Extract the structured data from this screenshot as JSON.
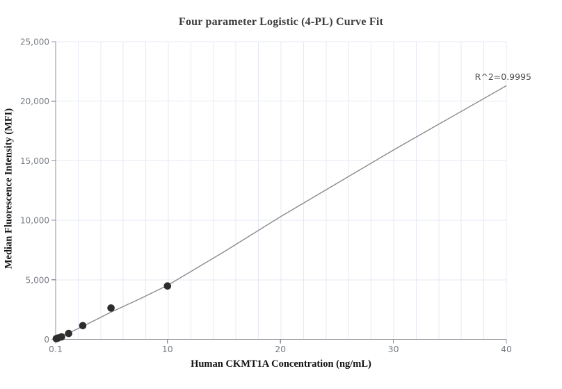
{
  "chart_data": {
    "type": "scatter",
    "title": "Four parameter Logistic (4-PL) Curve Fit",
    "xlabel": "Human CKMT1A Concentration (ng/mL)",
    "ylabel": "Median Fluorescence Intensity (MFI)",
    "annotation": "R^2=0.9995",
    "xlim": [
      0.1,
      40
    ],
    "ylim": [
      0,
      25000
    ],
    "grid": true,
    "legend_position": "none",
    "x_grid_divisions": 20,
    "x_ticks": [
      {
        "value": 0.1,
        "label": "0.1"
      },
      {
        "value": 10,
        "label": "10"
      },
      {
        "value": 20,
        "label": "20"
      },
      {
        "value": 30,
        "label": "30"
      },
      {
        "value": 40,
        "label": "40"
      }
    ],
    "y_ticks": [
      {
        "value": 0,
        "label": "0"
      },
      {
        "value": 5000,
        "label": "5,000"
      },
      {
        "value": 10000,
        "label": "10,000"
      },
      {
        "value": 15000,
        "label": "15,000"
      },
      {
        "value": 20000,
        "label": "20,000"
      },
      {
        "value": 25000,
        "label": "25,000"
      }
    ],
    "series": [
      {
        "name": "standard-points",
        "type": "scatter",
        "points": [
          {
            "x": 0.156,
            "y": 60
          },
          {
            "x": 0.313,
            "y": 110
          },
          {
            "x": 0.625,
            "y": 210
          },
          {
            "x": 1.25,
            "y": 490
          },
          {
            "x": 2.5,
            "y": 1150
          },
          {
            "x": 5,
            "y": 2630
          },
          {
            "x": 10,
            "y": 4480
          }
        ]
      },
      {
        "name": "4pl-fit-line",
        "type": "line",
        "points": [
          [
            0.1,
            30
          ],
          [
            0.6,
            250
          ],
          [
            1.25,
            520
          ],
          [
            2.5,
            1090
          ],
          [
            5,
            2280
          ],
          [
            7.5,
            3380
          ],
          [
            10,
            4530
          ],
          [
            15,
            7350
          ],
          [
            20,
            10300
          ],
          [
            25,
            13100
          ],
          [
            30,
            15900
          ],
          [
            35,
            18600
          ],
          [
            40,
            21300
          ]
        ]
      }
    ],
    "colors": {
      "background": "#ffffff",
      "grid": "#e5e9f3",
      "axis": "#8d9097",
      "tick_label": "#787d85",
      "title": "#3d3d3d",
      "axis_label": "#121212",
      "point": "#2d2d2d",
      "fit_line": "#8b8b8b",
      "annotation": "#4b4b4b"
    }
  }
}
